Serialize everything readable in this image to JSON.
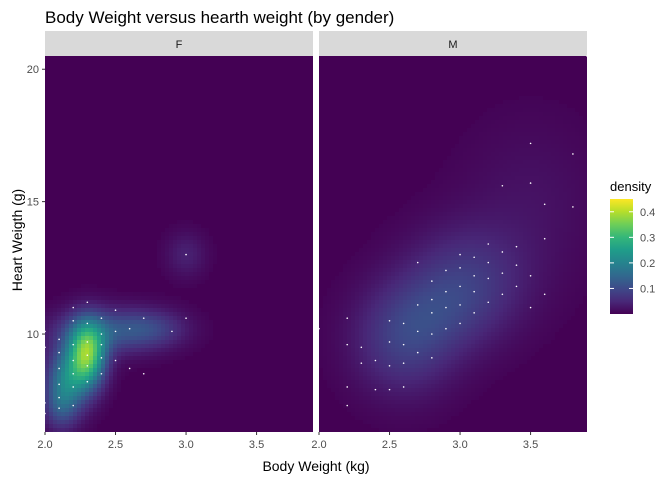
{
  "chart_data": {
    "type": "heatmap",
    "title": "Body Weight versus hearth weight (by gender)",
    "xlabel": "Body Weight (kg)",
    "ylabel": "Heart Weigth (g)",
    "xlim": [
      2.0,
      3.9
    ],
    "ylim": [
      6.3,
      20.5
    ],
    "x_ticks": [
      2.0,
      2.5,
      3.0,
      3.5
    ],
    "x_tick_labels": [
      "2.0",
      "2.5",
      "3.0",
      "3.5"
    ],
    "y_ticks": [
      10,
      15,
      20
    ],
    "y_tick_labels": [
      "10",
      "15",
      "20"
    ],
    "grid": false,
    "legend_position": "right",
    "colorscale": "viridis",
    "colors": {
      "background": "#440154",
      "strip": "#d9d9d9",
      "points": "#ffffff"
    },
    "legend": {
      "title": "density",
      "ticks": [
        0.1,
        0.2,
        0.3,
        0.4
      ],
      "tick_labels": [
        "0.1",
        "0.2",
        "0.3",
        "0.4"
      ],
      "range": [
        0.0,
        0.45
      ]
    },
    "panels": [
      {
        "label": "F",
        "kernels": [
          {
            "x": 2.3,
            "y": 9.2,
            "sx": 0.09,
            "sy": 0.85,
            "w": 0.33
          },
          {
            "x": 2.15,
            "y": 8.2,
            "sx": 0.1,
            "sy": 0.9,
            "w": 0.18
          },
          {
            "x": 2.42,
            "y": 10.1,
            "sx": 0.25,
            "sy": 0.6,
            "w": 0.1
          },
          {
            "x": 2.75,
            "y": 10.2,
            "sx": 0.18,
            "sy": 0.5,
            "w": 0.07
          },
          {
            "x": 3.0,
            "y": 13.0,
            "sx": 0.1,
            "sy": 0.6,
            "w": 0.04
          },
          {
            "x": 2.1,
            "y": 7.2,
            "sx": 0.08,
            "sy": 0.6,
            "w": 0.06
          }
        ],
        "points": [
          {
            "x": 2.0,
            "y": 7.0
          },
          {
            "x": 2.0,
            "y": 7.4
          },
          {
            "x": 2.0,
            "y": 9.5
          },
          {
            "x": 2.0,
            "y": 10.1
          },
          {
            "x": 2.1,
            "y": 7.2
          },
          {
            "x": 2.1,
            "y": 7.6
          },
          {
            "x": 2.1,
            "y": 8.1
          },
          {
            "x": 2.1,
            "y": 8.7
          },
          {
            "x": 2.1,
            "y": 9.3
          },
          {
            "x": 2.1,
            "y": 9.8
          },
          {
            "x": 2.2,
            "y": 7.3
          },
          {
            "x": 2.2,
            "y": 8.0
          },
          {
            "x": 2.2,
            "y": 8.5
          },
          {
            "x": 2.2,
            "y": 9.0
          },
          {
            "x": 2.2,
            "y": 9.6
          },
          {
            "x": 2.2,
            "y": 10.5
          },
          {
            "x": 2.2,
            "y": 11.0
          },
          {
            "x": 2.3,
            "y": 8.2
          },
          {
            "x": 2.3,
            "y": 8.8
          },
          {
            "x": 2.3,
            "y": 9.2
          },
          {
            "x": 2.3,
            "y": 9.7
          },
          {
            "x": 2.3,
            "y": 10.4
          },
          {
            "x": 2.3,
            "y": 11.2
          },
          {
            "x": 2.4,
            "y": 8.5
          },
          {
            "x": 2.4,
            "y": 9.1
          },
          {
            "x": 2.4,
            "y": 9.6
          },
          {
            "x": 2.4,
            "y": 10.0
          },
          {
            "x": 2.4,
            "y": 10.6
          },
          {
            "x": 2.5,
            "y": 9.0
          },
          {
            "x": 2.5,
            "y": 10.1
          },
          {
            "x": 2.5,
            "y": 10.9
          },
          {
            "x": 2.6,
            "y": 8.7
          },
          {
            "x": 2.6,
            "y": 10.2
          },
          {
            "x": 2.7,
            "y": 8.5
          },
          {
            "x": 2.7,
            "y": 10.6
          },
          {
            "x": 2.9,
            "y": 10.1
          },
          {
            "x": 3.0,
            "y": 10.6
          },
          {
            "x": 3.0,
            "y": 13.0
          }
        ]
      },
      {
        "label": "M",
        "kernels": [
          {
            "x": 2.6,
            "y": 9.6,
            "sx": 0.25,
            "sy": 1.4,
            "w": 0.07
          },
          {
            "x": 3.05,
            "y": 12.2,
            "sx": 0.3,
            "sy": 1.4,
            "w": 0.06
          },
          {
            "x": 2.85,
            "y": 10.8,
            "sx": 0.3,
            "sy": 1.2,
            "w": 0.05
          },
          {
            "x": 3.5,
            "y": 15.0,
            "sx": 0.35,
            "sy": 2.2,
            "w": 0.02
          }
        ],
        "points": [
          {
            "x": 2.0,
            "y": 10.2
          },
          {
            "x": 2.2,
            "y": 7.3
          },
          {
            "x": 2.2,
            "y": 8.0
          },
          {
            "x": 2.2,
            "y": 9.6
          },
          {
            "x": 2.2,
            "y": 10.6
          },
          {
            "x": 2.3,
            "y": 8.9
          },
          {
            "x": 2.3,
            "y": 9.5
          },
          {
            "x": 2.4,
            "y": 7.9
          },
          {
            "x": 2.4,
            "y": 9.0
          },
          {
            "x": 2.5,
            "y": 7.9
          },
          {
            "x": 2.5,
            "y": 8.8
          },
          {
            "x": 2.5,
            "y": 9.7
          },
          {
            "x": 2.5,
            "y": 10.5
          },
          {
            "x": 2.6,
            "y": 8.0
          },
          {
            "x": 2.6,
            "y": 8.9
          },
          {
            "x": 2.6,
            "y": 9.6
          },
          {
            "x": 2.6,
            "y": 10.4
          },
          {
            "x": 2.7,
            "y": 9.3
          },
          {
            "x": 2.7,
            "y": 10.1
          },
          {
            "x": 2.7,
            "y": 11.1
          },
          {
            "x": 2.7,
            "y": 12.7
          },
          {
            "x": 2.8,
            "y": 9.1
          },
          {
            "x": 2.8,
            "y": 10.0
          },
          {
            "x": 2.8,
            "y": 10.8
          },
          {
            "x": 2.8,
            "y": 11.3
          },
          {
            "x": 2.8,
            "y": 12.0
          },
          {
            "x": 2.9,
            "y": 10.2
          },
          {
            "x": 2.9,
            "y": 11.0
          },
          {
            "x": 2.9,
            "y": 11.6
          },
          {
            "x": 2.9,
            "y": 12.4
          },
          {
            "x": 3.0,
            "y": 10.4
          },
          {
            "x": 3.0,
            "y": 11.1
          },
          {
            "x": 3.0,
            "y": 11.8
          },
          {
            "x": 3.0,
            "y": 12.5
          },
          {
            "x": 3.0,
            "y": 13.0
          },
          {
            "x": 3.1,
            "y": 10.8
          },
          {
            "x": 3.1,
            "y": 11.6
          },
          {
            "x": 3.1,
            "y": 12.2
          },
          {
            "x": 3.1,
            "y": 12.9
          },
          {
            "x": 3.2,
            "y": 11.2
          },
          {
            "x": 3.2,
            "y": 12.1
          },
          {
            "x": 3.2,
            "y": 12.7
          },
          {
            "x": 3.2,
            "y": 13.4
          },
          {
            "x": 3.3,
            "y": 11.5
          },
          {
            "x": 3.3,
            "y": 12.3
          },
          {
            "x": 3.3,
            "y": 13.1
          },
          {
            "x": 3.3,
            "y": 15.6
          },
          {
            "x": 3.4,
            "y": 11.8
          },
          {
            "x": 3.4,
            "y": 12.6
          },
          {
            "x": 3.4,
            "y": 13.3
          },
          {
            "x": 3.5,
            "y": 11.0
          },
          {
            "x": 3.5,
            "y": 12.2
          },
          {
            "x": 3.5,
            "y": 15.7
          },
          {
            "x": 3.5,
            "y": 17.2
          },
          {
            "x": 3.6,
            "y": 11.5
          },
          {
            "x": 3.6,
            "y": 13.6
          },
          {
            "x": 3.6,
            "y": 14.9
          },
          {
            "x": 3.8,
            "y": 14.8
          },
          {
            "x": 3.8,
            "y": 16.8
          },
          {
            "x": 3.9,
            "y": 20.5
          }
        ]
      }
    ]
  }
}
